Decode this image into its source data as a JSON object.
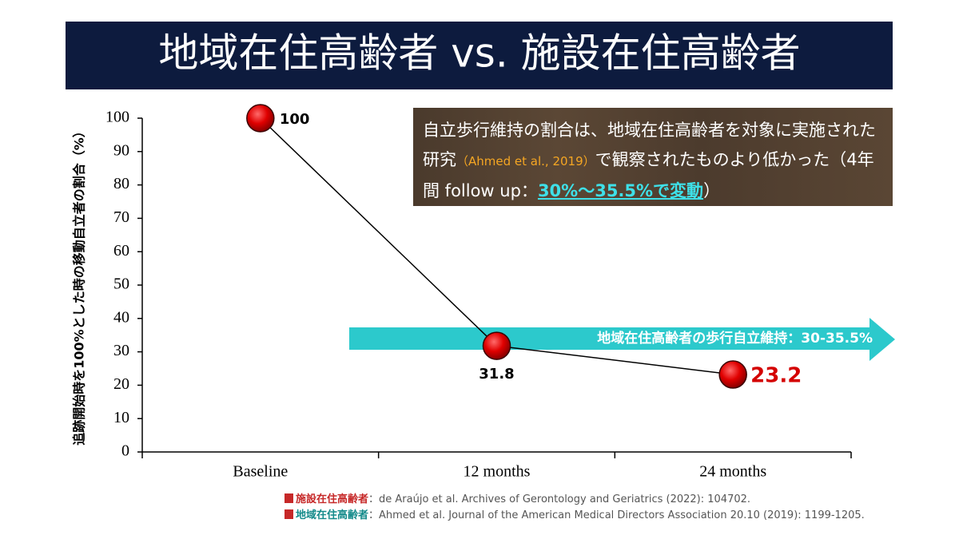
{
  "title": "地域在住高齢者 vs. 施設在住高齢者",
  "chart_data": {
    "type": "line",
    "y_label": "追跡開始時を100%とした時の移動自立者の割合（%）",
    "categories": [
      "Baseline",
      "12 months",
      "24 months"
    ],
    "series": [
      {
        "color": "#d40000",
        "values": [
          100,
          31.8,
          23.2
        ]
      }
    ],
    "ylim": [
      0,
      100
    ],
    "yticks": [
      0,
      10,
      20,
      30,
      40,
      50,
      60,
      70,
      80,
      90,
      100
    ]
  },
  "note": {
    "text1": "自立歩行維持の割合は、地域在住高齢者を対象に実施された研究",
    "cite": "（Ahmed et al., 2019）",
    "text2": "で観察されたものより低かった（4年間 follow up：",
    "highlight": "30%〜35.5%で変動",
    "text3": "）"
  },
  "arrow_label": "地域在住高齢者の歩行自立維持：30-35.5%",
  "references": [
    {
      "label": "施設在住高齢者",
      "text": "：de Araújo et al. Archives of Gerontology and Geriatrics (2022): 104702."
    },
    {
      "label": "地域在住高齢者",
      "text": "：Ahmed et al. Journal of the American Medical Directors Association 20.10 (2019): 1199-1205."
    }
  ]
}
